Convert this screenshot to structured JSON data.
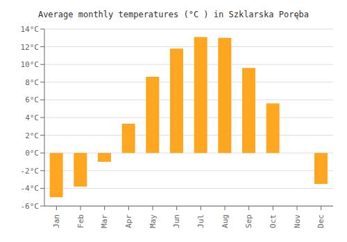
{
  "chart_data": {
    "type": "bar",
    "title": "Average monthly temperatures (°C ) in Szklarska Poręba",
    "categories": [
      "Jan",
      "Feb",
      "Mar",
      "Apr",
      "May",
      "Jun",
      "Jul",
      "Aug",
      "Sep",
      "Oct",
      "Nov",
      "Dec"
    ],
    "values": [
      -5.0,
      -3.8,
      -1.0,
      3.3,
      8.6,
      11.8,
      13.1,
      13.0,
      9.6,
      5.6,
      0.0,
      -3.5
    ],
    "color": "#FFA620",
    "ylim": [
      -6,
      14
    ],
    "yticks": [
      {
        "value": -6,
        "label": "-6°C"
      },
      {
        "value": -4,
        "label": "-4°C"
      },
      {
        "value": -2,
        "label": "-2°C"
      },
      {
        "value": 0,
        "label": "0°C"
      },
      {
        "value": 2,
        "label": "2°C"
      },
      {
        "value": 4,
        "label": "4°C"
      },
      {
        "value": 6,
        "label": "6°C"
      },
      {
        "value": 8,
        "label": "8°C"
      },
      {
        "value": 10,
        "label": "10°C"
      },
      {
        "value": 12,
        "label": "12°C"
      },
      {
        "value": 14,
        "label": "14°C"
      }
    ],
    "grid": true
  }
}
